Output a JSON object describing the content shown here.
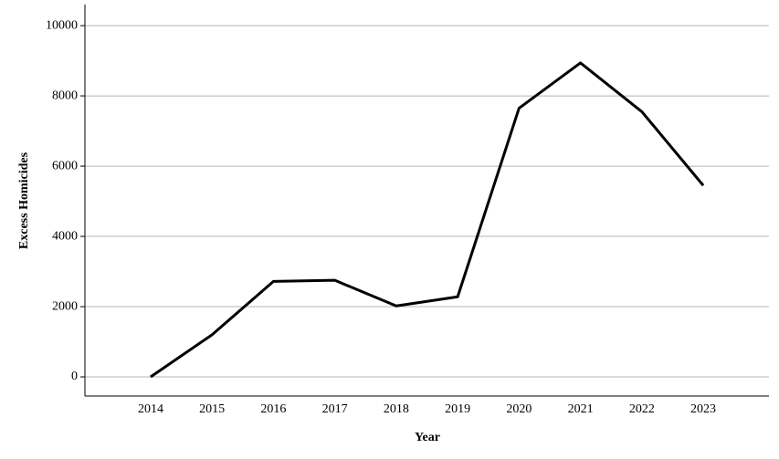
{
  "chart_data": {
    "type": "line",
    "x_label": "Year",
    "y_label": "Excess Homicides",
    "categories": [
      "2014",
      "2015",
      "2016",
      "2017",
      "2018",
      "2019",
      "2020",
      "2021",
      "2022",
      "2023"
    ],
    "series": [
      {
        "name": "Excess Homicides",
        "color": "#000000",
        "values": [
          0,
          1200,
          2720,
          2750,
          2020,
          2280,
          7650,
          8940,
          7550,
          5450
        ]
      }
    ],
    "ylim": [
      -545,
      10600
    ],
    "yticks": [
      0,
      2000,
      4000,
      6000,
      8000,
      10000
    ],
    "grid": true
  }
}
